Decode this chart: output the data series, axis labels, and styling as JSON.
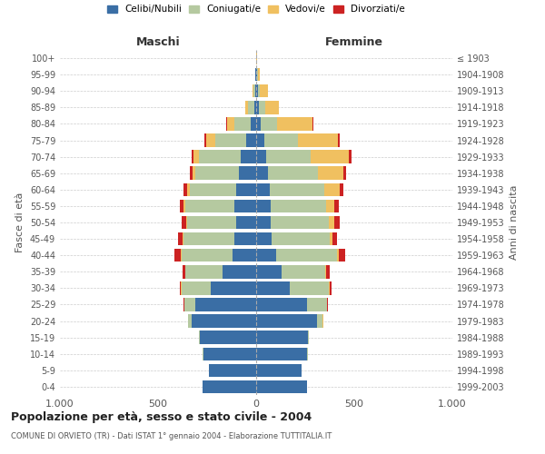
{
  "age_groups": [
    "0-4",
    "5-9",
    "10-14",
    "15-19",
    "20-24",
    "25-29",
    "30-34",
    "35-39",
    "40-44",
    "45-49",
    "50-54",
    "55-59",
    "60-64",
    "65-69",
    "70-74",
    "75-79",
    "80-84",
    "85-89",
    "90-94",
    "95-99",
    "100+"
  ],
  "birth_years": [
    "1999-2003",
    "1994-1998",
    "1989-1993",
    "1984-1988",
    "1979-1983",
    "1974-1978",
    "1969-1973",
    "1964-1968",
    "1959-1963",
    "1954-1958",
    "1949-1953",
    "1944-1948",
    "1939-1943",
    "1934-1938",
    "1929-1933",
    "1924-1928",
    "1919-1923",
    "1914-1918",
    "1909-1913",
    "1904-1908",
    "≤ 1903"
  ],
  "colors": {
    "celibi": "#3a6ea5",
    "coniugati": "#b5c9a0",
    "vedovi": "#f0c060",
    "divorziati": "#cc2222"
  },
  "males": {
    "celibi": [
      275,
      240,
      270,
      285,
      330,
      310,
      230,
      170,
      120,
      110,
      100,
      110,
      100,
      90,
      80,
      50,
      30,
      10,
      5,
      3,
      2
    ],
    "coniugati": [
      0,
      0,
      2,
      5,
      15,
      55,
      150,
      190,
      260,
      260,
      250,
      250,
      240,
      220,
      210,
      160,
      80,
      30,
      8,
      2,
      0
    ],
    "vedovi": [
      0,
      0,
      0,
      0,
      2,
      2,
      2,
      3,
      5,
      5,
      5,
      10,
      12,
      15,
      30,
      45,
      40,
      15,
      5,
      0,
      0
    ],
    "divorziati": [
      0,
      0,
      0,
      0,
      2,
      2,
      5,
      10,
      30,
      25,
      25,
      20,
      18,
      12,
      10,
      8,
      2,
      0,
      0,
      0,
      0
    ]
  },
  "females": {
    "celibi": [
      260,
      230,
      260,
      265,
      310,
      260,
      170,
      130,
      100,
      80,
      75,
      75,
      70,
      60,
      50,
      40,
      25,
      15,
      10,
      5,
      2
    ],
    "coniugati": [
      0,
      0,
      2,
      5,
      30,
      100,
      200,
      220,
      310,
      295,
      295,
      280,
      275,
      255,
      230,
      175,
      80,
      30,
      10,
      2,
      0
    ],
    "vedovi": [
      0,
      0,
      0,
      0,
      2,
      2,
      3,
      5,
      10,
      15,
      30,
      45,
      80,
      130,
      190,
      200,
      180,
      70,
      40,
      10,
      2
    ],
    "divorziati": [
      0,
      0,
      0,
      0,
      2,
      5,
      10,
      20,
      35,
      22,
      28,
      22,
      20,
      15,
      15,
      12,
      5,
      2,
      2,
      0,
      0
    ]
  },
  "title": "Popolazione per età, sesso e stato civile - 2004",
  "subtitle": "COMUNE DI ORVIETO (TR) - Dati ISTAT 1° gennaio 2004 - Elaborazione TUTTITALIA.IT",
  "xlabel_left": "Maschi",
  "xlabel_right": "Femmine",
  "ylabel_left": "Fasce di età",
  "ylabel_right": "Anni di nascita",
  "xlim": 1000,
  "legend_labels": [
    "Celibi/Nubili",
    "Coniugati/e",
    "Vedovi/e",
    "Divorziati/e"
  ],
  "background_color": "#ffffff",
  "bar_height": 0.8
}
